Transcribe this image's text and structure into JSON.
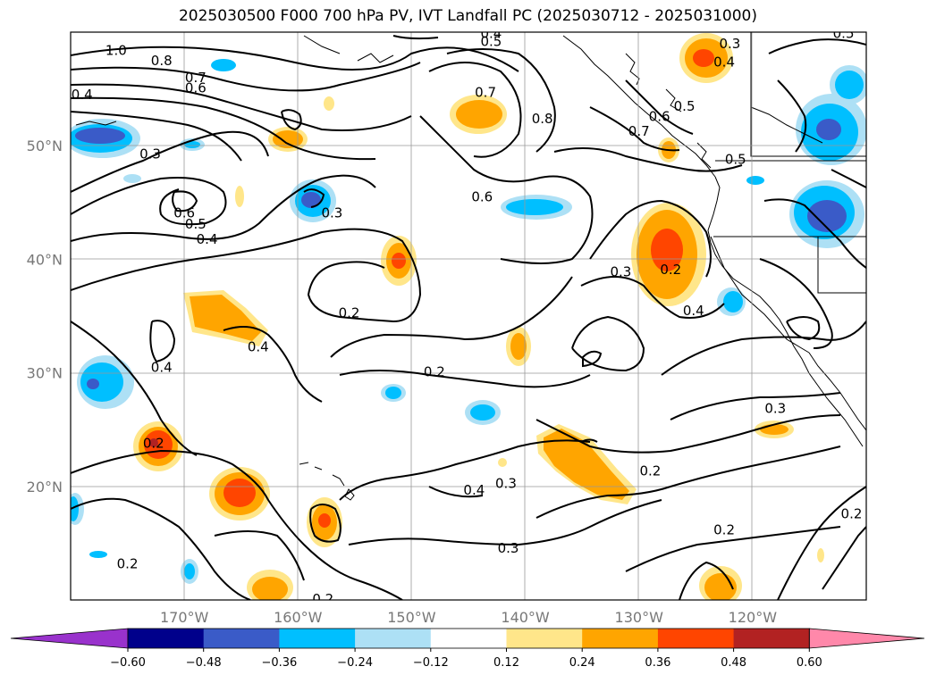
{
  "title": "2025030500 F000 700 hPa PV, IVT Landfall PC (2025030712 - 2025031000)",
  "map": {
    "lon_range": [
      -180,
      -110
    ],
    "lat_range": [
      10,
      60
    ],
    "lat_ticks": [
      {
        "value": 50,
        "label": "50°N"
      },
      {
        "value": 40,
        "label": "40°N"
      },
      {
        "value": 30,
        "label": "30°N"
      },
      {
        "value": 20,
        "label": "20°N"
      }
    ],
    "lon_ticks": [
      {
        "value": -170,
        "label": "170°W"
      },
      {
        "value": -160,
        "label": "160°W"
      },
      {
        "value": -150,
        "label": "150°W"
      },
      {
        "value": -140,
        "label": "140°W"
      },
      {
        "value": -130,
        "label": "130°W"
      },
      {
        "value": -120,
        "label": "120°W"
      }
    ],
    "grid": true,
    "coastline_color": "#000000",
    "contour_color": "#000000",
    "contour_labels": [
      {
        "text": "1.0",
        "lon": -176.0,
        "lat": 58.3
      },
      {
        "text": "0.8",
        "lon": -172.0,
        "lat": 57.4
      },
      {
        "text": "0.7",
        "lon": -169.0,
        "lat": 55.9
      },
      {
        "text": "0.6",
        "lon": -169.0,
        "lat": 55.0
      },
      {
        "text": "0.4",
        "lon": -179.0,
        "lat": 54.4
      },
      {
        "text": "0.3",
        "lon": -173.0,
        "lat": 49.2
      },
      {
        "text": "0.6",
        "lon": -170.0,
        "lat": 44.0
      },
      {
        "text": "0.5",
        "lon": -169.0,
        "lat": 43.0
      },
      {
        "text": "0.4",
        "lon": -168.0,
        "lat": 41.7
      },
      {
        "text": "0.3",
        "lon": -157.0,
        "lat": 44.0
      },
      {
        "text": "0.7",
        "lon": -143.5,
        "lat": 54.6
      },
      {
        "text": "0.8",
        "lon": -138.5,
        "lat": 52.3
      },
      {
        "text": "0.4",
        "lon": -143.0,
        "lat": 59.8
      },
      {
        "text": "0.5",
        "lon": -143.0,
        "lat": 59.1
      },
      {
        "text": "0.6",
        "lon": -143.8,
        "lat": 45.4
      },
      {
        "text": "0.5",
        "lon": -126.0,
        "lat": 53.4
      },
      {
        "text": "0.6",
        "lon": -128.2,
        "lat": 52.5
      },
      {
        "text": "0.7",
        "lon": -130.0,
        "lat": 51.2
      },
      {
        "text": "0.5",
        "lon": -121.5,
        "lat": 48.7
      },
      {
        "text": "0.3",
        "lon": -122.0,
        "lat": 58.9
      },
      {
        "text": "0.4",
        "lon": -122.5,
        "lat": 57.3
      },
      {
        "text": "0.5",
        "lon": -112.0,
        "lat": 59.8
      },
      {
        "text": "0.3",
        "lon": -131.6,
        "lat": 38.8
      },
      {
        "text": "0.2",
        "lon": -127.2,
        "lat": 39.0
      },
      {
        "text": "0.4",
        "lon": -125.2,
        "lat": 35.4
      },
      {
        "text": "0.2",
        "lon": -155.5,
        "lat": 35.2
      },
      {
        "text": "0.4",
        "lon": -163.5,
        "lat": 32.2
      },
      {
        "text": "0.4",
        "lon": -172.0,
        "lat": 30.4
      },
      {
        "text": "0.2",
        "lon": -148.0,
        "lat": 30.0
      },
      {
        "text": "0.2",
        "lon": -172.7,
        "lat": 23.7
      },
      {
        "text": "0.3",
        "lon": -118.0,
        "lat": 26.8
      },
      {
        "text": "0.2",
        "lon": -129.0,
        "lat": 21.3
      },
      {
        "text": "0.4",
        "lon": -144.5,
        "lat": 19.6
      },
      {
        "text": "0.3",
        "lon": -141.7,
        "lat": 20.2
      },
      {
        "text": "0.3",
        "lon": -141.5,
        "lat": 14.5
      },
      {
        "text": "0.2",
        "lon": -122.5,
        "lat": 16.1
      },
      {
        "text": "0.2",
        "lon": -111.3,
        "lat": 17.5
      },
      {
        "text": "0.2",
        "lon": -175.0,
        "lat": 13.1
      },
      {
        "text": "0.2",
        "lon": -157.8,
        "lat": 10.0
      }
    ]
  },
  "colorbar": {
    "ticks": [
      "−0.60",
      "−0.48",
      "−0.36",
      "−0.24",
      "−0.12",
      "0.12",
      "0.24",
      "0.36",
      "0.48",
      "0.60"
    ],
    "colors": [
      "#9932CC",
      "#00008B",
      "#3A5BC8",
      "#00BFFF",
      "#ADE0F5",
      "#FFFFFF",
      "#FFE68A",
      "#FFA500",
      "#FF4500",
      "#B22222",
      "#FF88AA"
    ]
  }
}
